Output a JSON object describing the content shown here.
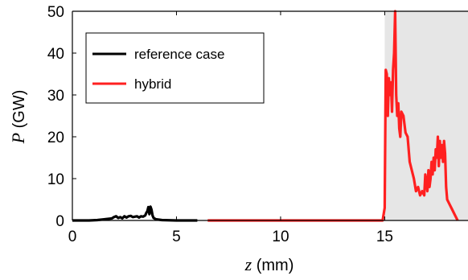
{
  "chart_data": {
    "type": "line",
    "xlabel": {
      "var": "z",
      "unit": " (mm)"
    },
    "ylabel": {
      "var": "P",
      "unit": " (GW)"
    },
    "xlim": [
      0,
      19
    ],
    "ylim": [
      0,
      50
    ],
    "xticks": [
      "0",
      "5",
      "10",
      "15"
    ],
    "xtick_values": [
      0,
      5,
      10,
      15
    ],
    "yticks": [
      "0",
      "10",
      "20",
      "30",
      "40",
      "50"
    ],
    "ytick_values": [
      0,
      10,
      20,
      30,
      40,
      50
    ],
    "grid": false,
    "legend_position": "top-left",
    "shaded_region": {
      "x_from": 15,
      "x_to": 19,
      "color": "#e6e6e6"
    },
    "series": [
      {
        "name": "reference case",
        "color": "#000000",
        "x": [
          0,
          0.8,
          1.2,
          1.6,
          1.9,
          2.0,
          2.1,
          2.2,
          2.3,
          2.4,
          2.5,
          2.6,
          2.7,
          2.8,
          2.9,
          3.0,
          3.1,
          3.2,
          3.3,
          3.4,
          3.5,
          3.55,
          3.6,
          3.65,
          3.7,
          3.75,
          3.8,
          3.85,
          3.9,
          4.0,
          4.3,
          5.0,
          6.0
        ],
        "y": [
          0,
          0,
          0.1,
          0.3,
          0.5,
          0.8,
          1.0,
          0.6,
          0.8,
          0.5,
          1.0,
          0.7,
          1.0,
          1.1,
          0.8,
          0.9,
          1.0,
          0.7,
          1.0,
          0.9,
          1.2,
          1.8,
          2.2,
          3.2,
          1.5,
          3.3,
          2.6,
          1.2,
          0.6,
          0.3,
          0.1,
          0,
          0
        ]
      },
      {
        "name": "hybrid",
        "color": "#ff2020",
        "x": [
          6.5,
          10,
          14.0,
          14.9,
          15.0,
          15.05,
          15.1,
          15.15,
          15.2,
          15.25,
          15.3,
          15.35,
          15.4,
          15.45,
          15.5,
          15.55,
          15.6,
          15.65,
          15.7,
          15.75,
          15.8,
          15.9,
          16.0,
          16.1,
          16.2,
          16.3,
          16.4,
          16.5,
          16.6,
          16.7,
          16.8,
          16.9,
          16.95,
          17.0,
          17.05,
          17.1,
          17.15,
          17.2,
          17.25,
          17.3,
          17.35,
          17.4,
          17.45,
          17.5,
          17.55,
          17.6,
          17.65,
          17.7,
          17.75,
          17.8,
          17.85,
          17.9,
          17.95,
          18.0,
          18.1,
          18.2,
          18.3,
          18.4,
          18.5
        ],
        "y": [
          0,
          0,
          0,
          0,
          3,
          36,
          35,
          25,
          34,
          30,
          33,
          26,
          36,
          40,
          50,
          30,
          25,
          28,
          22,
          20,
          26,
          25,
          21,
          20,
          14,
          12,
          10,
          7,
          8,
          6,
          7,
          6,
          11,
          9,
          7,
          12,
          8,
          10,
          14,
          11,
          15,
          12,
          17,
          15,
          20,
          13,
          19,
          15,
          18,
          14,
          19,
          16,
          8,
          5,
          4,
          3,
          2,
          1,
          0
        ]
      }
    ]
  }
}
